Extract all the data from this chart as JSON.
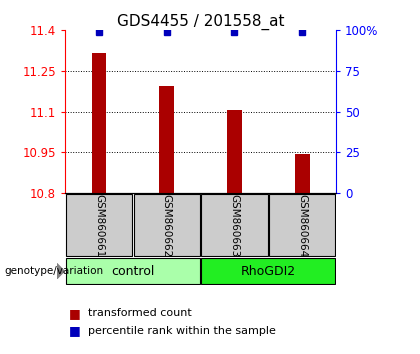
{
  "title": "GDS4455 / 201558_at",
  "samples": [
    "GSM860661",
    "GSM860662",
    "GSM860663",
    "GSM860664"
  ],
  "bar_values": [
    11.315,
    11.195,
    11.105,
    10.945
  ],
  "y_min": 10.8,
  "y_max": 11.4,
  "y_ticks": [
    10.8,
    10.95,
    11.1,
    11.25,
    11.4
  ],
  "right_tick_labels": [
    "0",
    "25",
    "50",
    "75",
    "100%"
  ],
  "groups": [
    {
      "name": "control",
      "indices": [
        0,
        1
      ],
      "color": "#aaffaa"
    },
    {
      "name": "RhoGDI2",
      "indices": [
        2,
        3
      ],
      "color": "#22ee22"
    }
  ],
  "bar_color": "#aa0000",
  "dot_color": "#0000bb",
  "sample_box_color": "#cccccc",
  "background_color": "#ffffff",
  "title_fontsize": 11,
  "tick_fontsize": 8.5,
  "sample_fontsize": 7.5,
  "group_fontsize": 9,
  "legend_fontsize": 8,
  "genotype_label": "genotype/variation",
  "legend_items": [
    {
      "color": "#aa0000",
      "label": "transformed count"
    },
    {
      "color": "#0000bb",
      "label": "percentile rank within the sample"
    }
  ]
}
